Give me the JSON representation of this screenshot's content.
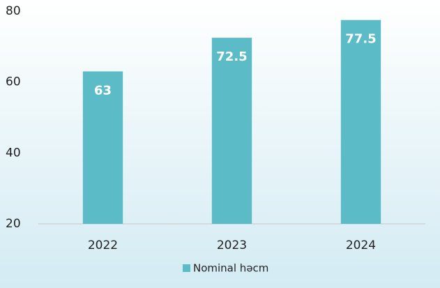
{
  "chart_data": {
    "type": "bar",
    "categories": [
      "2022",
      "2023",
      "2024"
    ],
    "series": [
      {
        "name": "Nominal həcm",
        "color": "#5bbcc8",
        "values": [
          63,
          72.5,
          77.5
        ]
      }
    ],
    "ylim": [
      20,
      80
    ],
    "yticks": [
      20,
      40,
      60,
      80
    ],
    "legend": "bottom"
  }
}
